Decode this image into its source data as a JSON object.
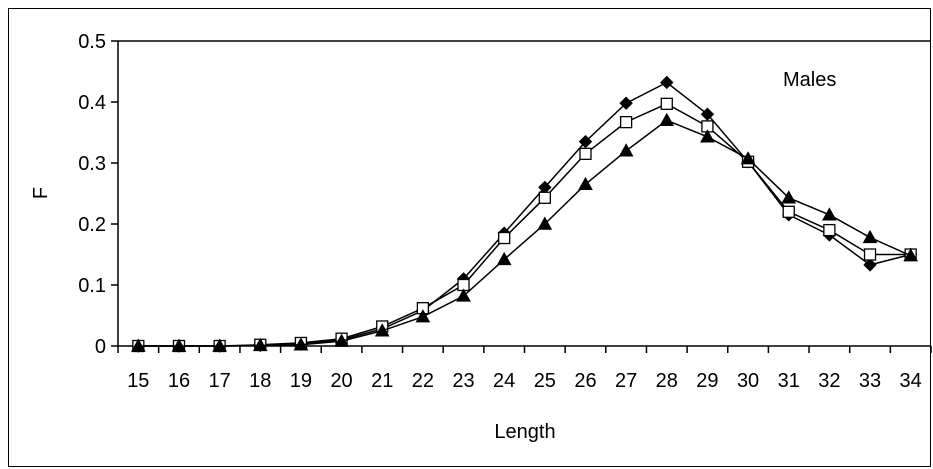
{
  "chart_data": {
    "type": "line",
    "title": "",
    "annotation": "Males",
    "xlabel": "Length",
    "ylabel": "F",
    "categories": [
      "15",
      "16",
      "17",
      "18",
      "19",
      "20",
      "21",
      "22",
      "23",
      "24",
      "25",
      "26",
      "27",
      "28",
      "29",
      "30",
      "31",
      "32",
      "33",
      "34"
    ],
    "ylim": [
      0,
      0.5
    ],
    "yticks": [
      "0",
      "0.1",
      "0.2",
      "0.3",
      "0.4",
      "0.5"
    ],
    "grid": false,
    "legend": "none",
    "series": [
      {
        "marker": "diamond-filled",
        "values": [
          0.0,
          0.0,
          0.0,
          0.001,
          0.003,
          0.01,
          0.028,
          0.058,
          0.11,
          0.185,
          0.26,
          0.335,
          0.398,
          0.432,
          0.38,
          0.302,
          0.215,
          0.182,
          0.133,
          0.15
        ]
      },
      {
        "marker": "square-open",
        "values": [
          0.0,
          0.0,
          0.0,
          0.002,
          0.005,
          0.012,
          0.032,
          0.062,
          0.1,
          0.177,
          0.243,
          0.315,
          0.367,
          0.397,
          0.36,
          0.302,
          0.22,
          0.19,
          0.15,
          0.15
        ]
      },
      {
        "marker": "triangle-filled",
        "values": [
          0.0,
          0.0,
          0.0,
          0.001,
          0.002,
          0.008,
          0.025,
          0.048,
          0.082,
          0.142,
          0.2,
          0.265,
          0.32,
          0.37,
          0.343,
          0.307,
          0.243,
          0.215,
          0.178,
          0.148
        ]
      }
    ],
    "colors": {
      "line": "#000000",
      "marker_fill": "#000000",
      "open_fill": "#ffffff"
    }
  }
}
